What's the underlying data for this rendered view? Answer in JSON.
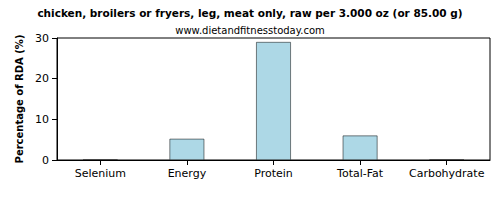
{
  "chart_data": {
    "type": "bar",
    "title": "chicken, broilers or fryers, leg, meat only, raw per 3.000 oz (or 85.00 g)",
    "subtitle": "www.dietandfitnesstoday.com",
    "y_label": "Percentage of RDA (%)",
    "categories": [
      "Selenium",
      "Energy",
      "Protein",
      "Total-Fat",
      "Carbohydrate"
    ],
    "values": [
      0,
      5.2,
      29,
      6,
      0
    ],
    "color": "#add8e6",
    "ylim": [
      0,
      30
    ],
    "yticks": [
      0,
      10,
      20,
      30
    ],
    "grid": false
  }
}
